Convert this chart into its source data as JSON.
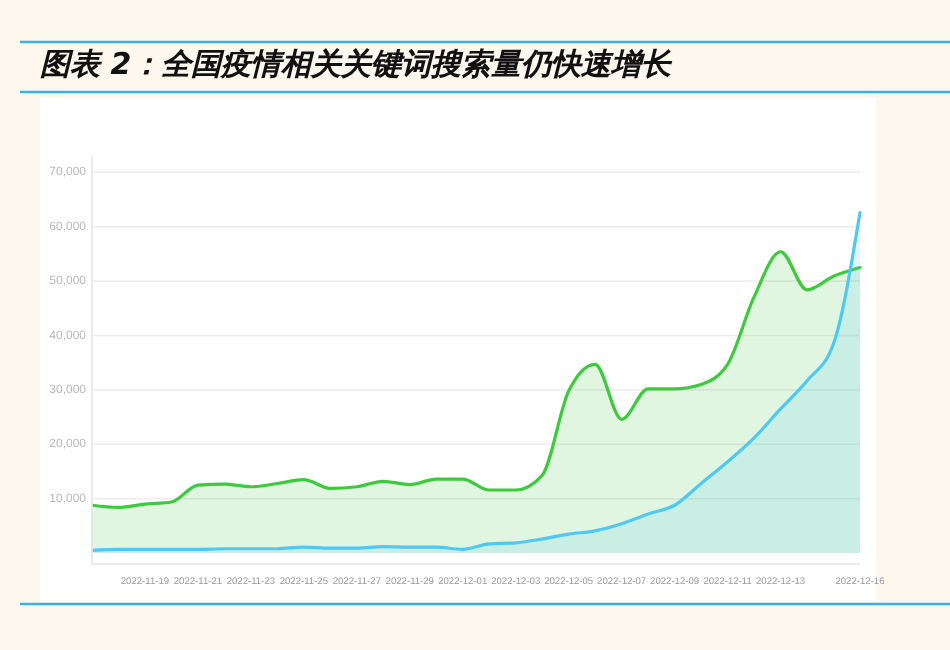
{
  "chart_data": {
    "type": "area",
    "title": "图表 2：全国疫情相关关键词搜索量仍快速增长",
    "x": [
      "2022-11-17",
      "2022-11-18",
      "2022-11-19",
      "2022-11-20",
      "2022-11-21",
      "2022-11-22",
      "2022-11-23",
      "2022-11-24",
      "2022-11-25",
      "2022-11-26",
      "2022-11-27",
      "2022-11-28",
      "2022-11-29",
      "2022-11-30",
      "2022-12-01",
      "2022-12-02",
      "2022-12-03",
      "2022-12-04",
      "2022-12-05",
      "2022-12-06",
      "2022-12-07",
      "2022-12-08",
      "2022-12-09",
      "2022-12-10",
      "2022-12-11",
      "2022-12-12",
      "2022-12-13",
      "2022-12-14",
      "2022-12-15",
      "2022-12-16"
    ],
    "series": [
      {
        "color": "#3ec93e",
        "values": [
          8800,
          8400,
          9000,
          9400,
          12500,
          12700,
          12200,
          12800,
          13500,
          11900,
          12200,
          13200,
          12600,
          13600,
          13600,
          11600,
          11600,
          14300,
          29800,
          34700,
          24600,
          30200,
          30200,
          31000,
          34700,
          47100,
          55400,
          48400,
          50900,
          52500
        ]
      },
      {
        "color": "#4fc8f4",
        "values": [
          500,
          700,
          700,
          700,
          700,
          800,
          800,
          800,
          1100,
          900,
          900,
          1200,
          1100,
          1100,
          700,
          1700,
          1900,
          2600,
          3500,
          4100,
          5400,
          7200,
          8800,
          12800,
          16800,
          21200,
          26500,
          31700,
          38500,
          62600
        ]
      }
    ],
    "xlim": [
      "2022-11-17",
      "2022-12-16"
    ],
    "xticks": [
      "2022-11-19",
      "2022-11-21",
      "2022-11-23",
      "2022-11-25",
      "2022-11-27",
      "2022-11-29",
      "2022-12-01",
      "2022-12-03",
      "2022-12-05",
      "2022-12-07",
      "2022-12-09",
      "2022-12-11",
      "2022-12-13",
      "2022-12-16"
    ],
    "ylim": [
      -2000,
      73000
    ],
    "yticks": [
      {
        "value": 10000,
        "label": "10,000"
      },
      {
        "value": 20000,
        "label": "20,000"
      },
      {
        "value": 30000,
        "label": "30,000"
      },
      {
        "value": 40000,
        "label": "40,000"
      },
      {
        "value": 50000,
        "label": "50,000"
      },
      {
        "value": 60000,
        "label": "60,000"
      },
      {
        "value": 70000,
        "label": "70,000"
      }
    ],
    "grid": "y"
  }
}
